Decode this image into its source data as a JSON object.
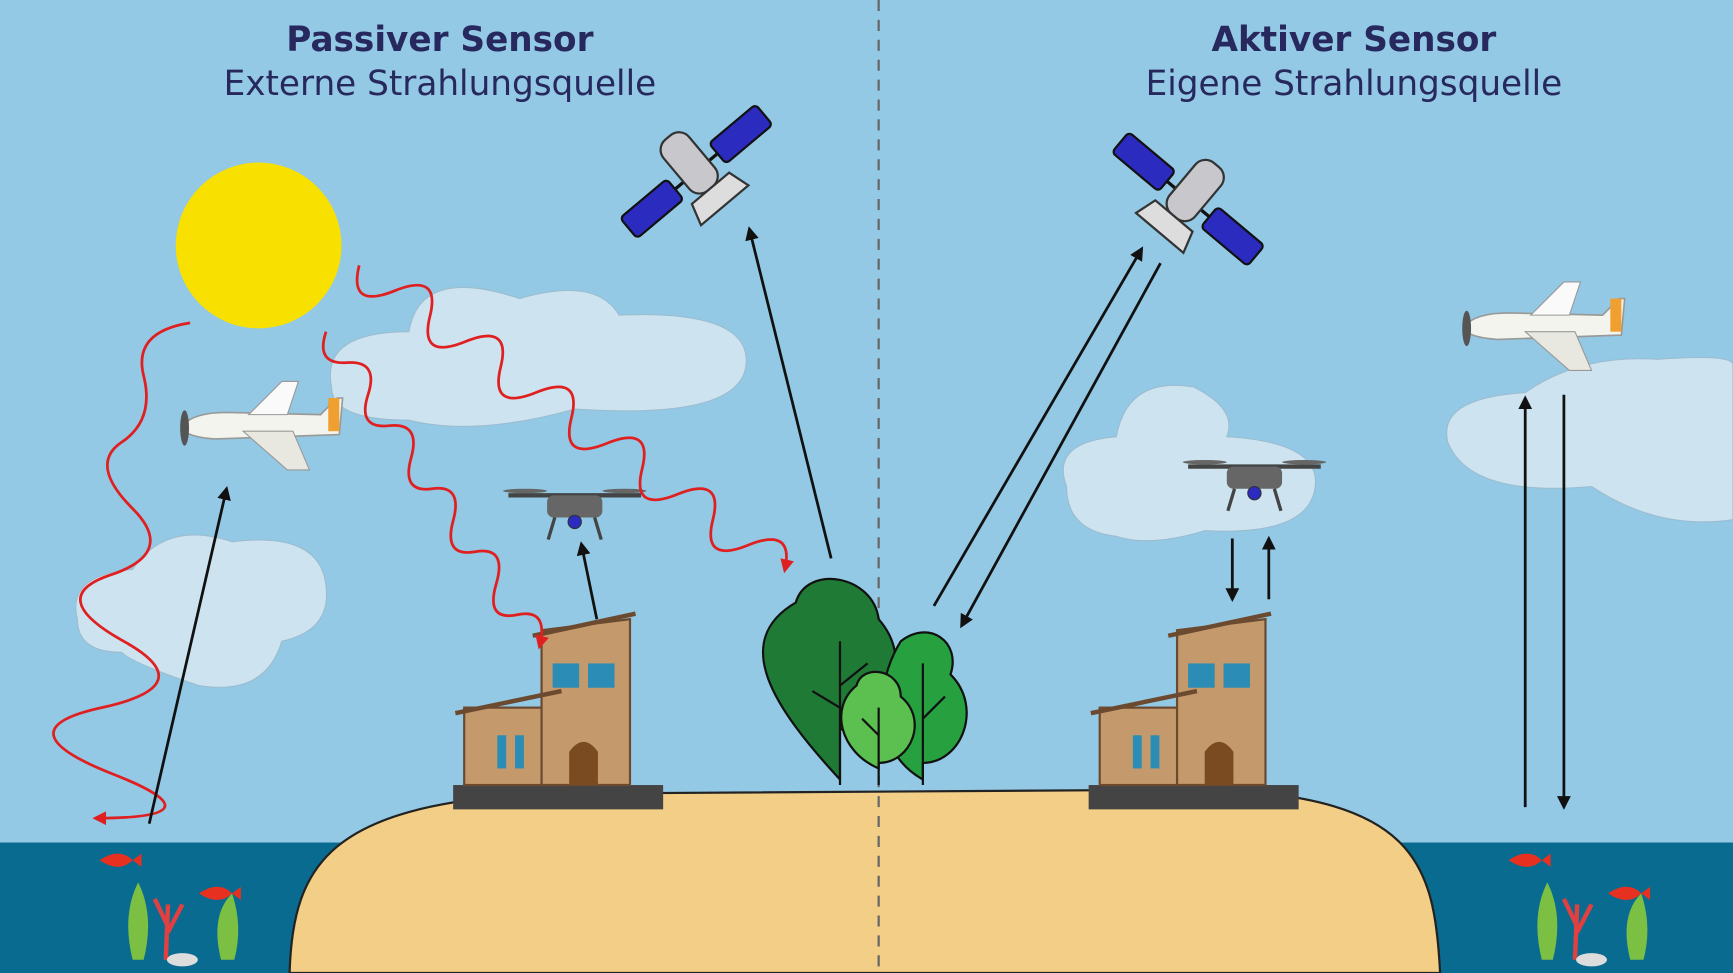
{
  "panels": [
    {
      "title": "Passiver Sensor",
      "subtitle": "Externe Strahlungsquelle"
    },
    {
      "title": "Aktiver Sensor",
      "subtitle": "Eigene Strahlungsquelle"
    }
  ]
}
